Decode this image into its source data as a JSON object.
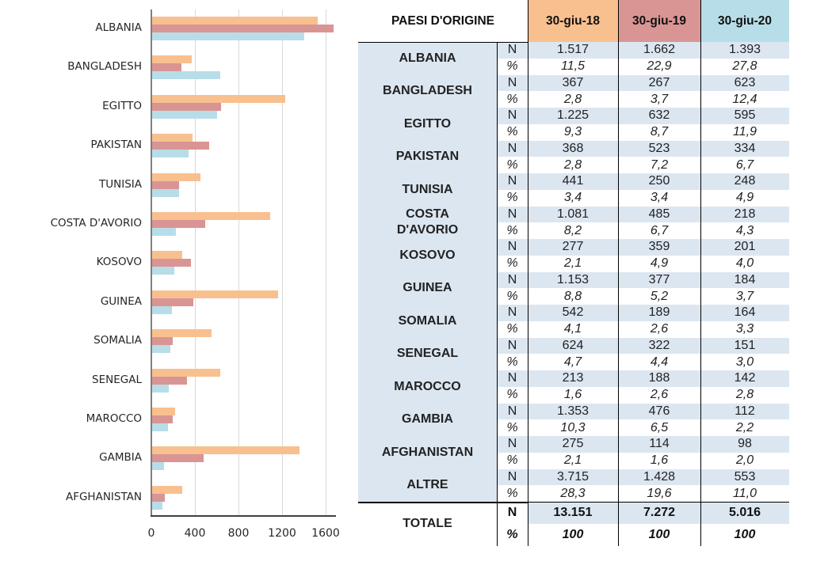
{
  "colors": {
    "s2018": "#f9c08f",
    "s2019": "#d99594",
    "s2020": "#b7dee8",
    "table_fill": "#dce6f1"
  },
  "chart_data": {
    "type": "bar",
    "orientation": "horizontal",
    "categories": [
      "ALBANIA",
      "BANGLADESH",
      "EGITTO",
      "PAKISTAN",
      "TUNISIA",
      "COSTA D'AVORIO",
      "KOSOVO",
      "GUINEA",
      "SOMALIA",
      "SENEGAL",
      "MAROCCO",
      "GAMBIA",
      "AFGHANISTAN"
    ],
    "series": [
      {
        "name": "30-giu-18",
        "color": "#f9c08f",
        "values": [
          1517,
          367,
          1225,
          368,
          441,
          1081,
          277,
          1153,
          542,
          624,
          213,
          1353,
          275
        ]
      },
      {
        "name": "30-giu-19",
        "color": "#d99594",
        "values": [
          1662,
          267,
          632,
          523,
          250,
          485,
          359,
          377,
          189,
          322,
          188,
          476,
          114
        ]
      },
      {
        "name": "30-giu-20",
        "color": "#b7dee8",
        "values": [
          1393,
          623,
          595,
          334,
          248,
          218,
          201,
          184,
          164,
          151,
          142,
          112,
          98
        ]
      }
    ],
    "xticks": [
      "0",
      "400",
      "800",
      "1200",
      "1600"
    ],
    "xlim": [
      0,
      1700
    ],
    "grid": true,
    "title": "",
    "xlabel": "",
    "ylabel": ""
  },
  "table": {
    "header": {
      "country": "PAESI D'ORIGINE",
      "cols": [
        "30-giu-18",
        "30-giu-19",
        "30-giu-20"
      ]
    },
    "n_label": "N",
    "pct_label": "%",
    "rows": [
      {
        "country": [
          "ALBANIA"
        ],
        "n": [
          "1.517",
          "1.662",
          "1.393"
        ],
        "p": [
          "11,5",
          "22,9",
          "27,8"
        ]
      },
      {
        "country": [
          "BANGLADESH"
        ],
        "n": [
          "367",
          "267",
          "623"
        ],
        "p": [
          "2,8",
          "3,7",
          "12,4"
        ]
      },
      {
        "country": [
          "EGITTO"
        ],
        "n": [
          "1.225",
          "632",
          "595"
        ],
        "p": [
          "9,3",
          "8,7",
          "11,9"
        ]
      },
      {
        "country": [
          "PAKISTAN"
        ],
        "n": [
          "368",
          "523",
          "334"
        ],
        "p": [
          "2,8",
          "7,2",
          "6,7"
        ]
      },
      {
        "country": [
          "TUNISIA"
        ],
        "n": [
          "441",
          "250",
          "248"
        ],
        "p": [
          "3,4",
          "3,4",
          "4,9"
        ]
      },
      {
        "country": [
          "COSTA",
          "D'AVORIO"
        ],
        "n": [
          "1.081",
          "485",
          "218"
        ],
        "p": [
          "8,2",
          "6,7",
          "4,3"
        ]
      },
      {
        "country": [
          "KOSOVO"
        ],
        "n": [
          "277",
          "359",
          "201"
        ],
        "p": [
          "2,1",
          "4,9",
          "4,0"
        ]
      },
      {
        "country": [
          "GUINEA"
        ],
        "n": [
          "1.153",
          "377",
          "184"
        ],
        "p": [
          "8,8",
          "5,2",
          "3,7"
        ]
      },
      {
        "country": [
          "SOMALIA"
        ],
        "n": [
          "542",
          "189",
          "164"
        ],
        "p": [
          "4,1",
          "2,6",
          "3,3"
        ]
      },
      {
        "country": [
          "SENEGAL"
        ],
        "n": [
          "624",
          "322",
          "151"
        ],
        "p": [
          "4,7",
          "4,4",
          "3,0"
        ]
      },
      {
        "country": [
          "MAROCCO"
        ],
        "n": [
          "213",
          "188",
          "142"
        ],
        "p": [
          "1,6",
          "2,6",
          "2,8"
        ]
      },
      {
        "country": [
          "GAMBIA"
        ],
        "n": [
          "1.353",
          "476",
          "112"
        ],
        "p": [
          "10,3",
          "6,5",
          "2,2"
        ]
      },
      {
        "country": [
          "AFGHANISTAN"
        ],
        "n": [
          "275",
          "114",
          "98"
        ],
        "p": [
          "2,1",
          "1,6",
          "2,0"
        ]
      },
      {
        "country": [
          "ALTRE"
        ],
        "n": [
          "3.715",
          "1.428",
          "553"
        ],
        "p": [
          "28,3",
          "19,6",
          "11,0"
        ]
      }
    ],
    "total": {
      "label": "TOTALE",
      "n": [
        "13.151",
        "7.272",
        "5.016"
      ],
      "p": [
        "100",
        "100",
        "100"
      ]
    }
  }
}
